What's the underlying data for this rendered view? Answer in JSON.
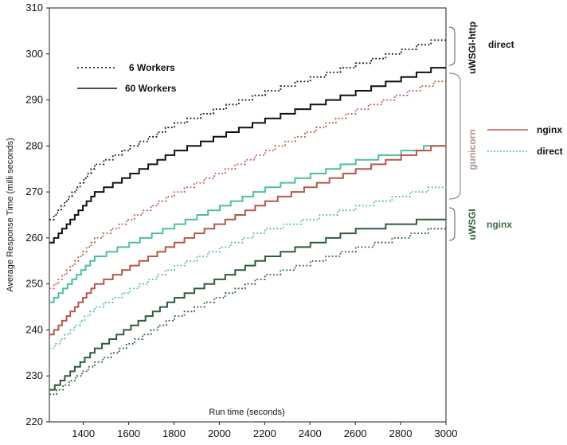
{
  "chart_data": {
    "type": "line",
    "xlabel": "Run time (seconds)",
    "ylabel": "Average Response Time (milli seconds)",
    "xlim": [
      1250,
      3000
    ],
    "ylim": [
      220,
      310
    ],
    "x_ticks": [
      "1400",
      "1600",
      "1800",
      "2000",
      "2200",
      "2400",
      "2600",
      "2800",
      "3000"
    ],
    "y_ticks": [
      "220",
      "230",
      "240",
      "250",
      "260",
      "270",
      "280",
      "290",
      "300",
      "310"
    ],
    "grid": false,
    "legend": {
      "placement": "top-left",
      "entries": [
        {
          "label": "6 Workers",
          "style": "dotted"
        },
        {
          "label": "60 Workers",
          "style": "solid"
        }
      ]
    },
    "groups": [
      {
        "label": "uWSGI-http",
        "color": "#111111",
        "items": [
          {
            "label": "direct",
            "color": "#111111"
          }
        ]
      },
      {
        "label": "gunicorn",
        "color": "#a89088",
        "items": [
          {
            "label": "nginx",
            "color": "#b5584a"
          },
          {
            "label": "direct",
            "color": "#4fbf9a"
          }
        ]
      },
      {
        "label": "uWSGI",
        "color": "#2f5e3a",
        "items": [
          {
            "label": "nginx",
            "color": "#3f6b4a"
          }
        ]
      }
    ],
    "series": [
      {
        "server": "uWSGI-http",
        "proxy": "direct",
        "workers": "6 Workers",
        "style": "dotted",
        "color": "#111111",
        "x": [
          1250,
          1450,
          1800,
          2200,
          2600,
          3000
        ],
        "y": [
          264,
          276,
          285,
          292,
          298,
          304
        ]
      },
      {
        "server": "uWSGI-http",
        "proxy": "direct",
        "workers": "60 Workers",
        "style": "solid",
        "color": "#111111",
        "x": [
          1250,
          1450,
          1800,
          2200,
          2600,
          3000
        ],
        "y": [
          259,
          270,
          279,
          286,
          292,
          298
        ]
      },
      {
        "server": "gunicorn",
        "proxy": "nginx",
        "workers": "6 Workers",
        "style": "dotted",
        "color": "#b5584a",
        "x": [
          1250,
          1450,
          1800,
          2200,
          2600,
          3000
        ],
        "y": [
          249,
          260,
          270,
          279,
          288,
          295
        ]
      },
      {
        "server": "gunicorn",
        "proxy": "direct",
        "workers": "60 Workers",
        "style": "solid",
        "color": "#4fbf9a",
        "x": [
          1250,
          1450,
          1800,
          2200,
          2600,
          3000
        ],
        "y": [
          246,
          256,
          263,
          271,
          277,
          281
        ]
      },
      {
        "server": "gunicorn",
        "proxy": "nginx",
        "workers": "60 Workers",
        "style": "solid",
        "color": "#b5584a",
        "x": [
          1250,
          1450,
          1800,
          2200,
          2600,
          3000
        ],
        "y": [
          239,
          250,
          259,
          268,
          275,
          281
        ]
      },
      {
        "server": "gunicorn",
        "proxy": "direct",
        "workers": "6 Workers",
        "style": "dotted",
        "color": "#4fbf9a",
        "x": [
          1250,
          1450,
          1800,
          2200,
          2600,
          3000
        ],
        "y": [
          236,
          245,
          254,
          262,
          267,
          272
        ]
      },
      {
        "server": "uWSGI",
        "proxy": "nginx",
        "workers": "60 Workers",
        "style": "solid",
        "color": "#2f5e3a",
        "x": [
          1250,
          1450,
          1800,
          2200,
          2600,
          3000
        ],
        "y": [
          227,
          236,
          247,
          256,
          262,
          265
        ]
      },
      {
        "server": "uWSGI",
        "proxy": "nginx",
        "workers": "6 Workers",
        "style": "dotted",
        "color": "#2f5e3a",
        "x": [
          1250,
          1450,
          1800,
          2200,
          2600,
          3000
        ],
        "y": [
          226,
          233,
          243,
          252,
          258,
          263
        ]
      }
    ]
  }
}
